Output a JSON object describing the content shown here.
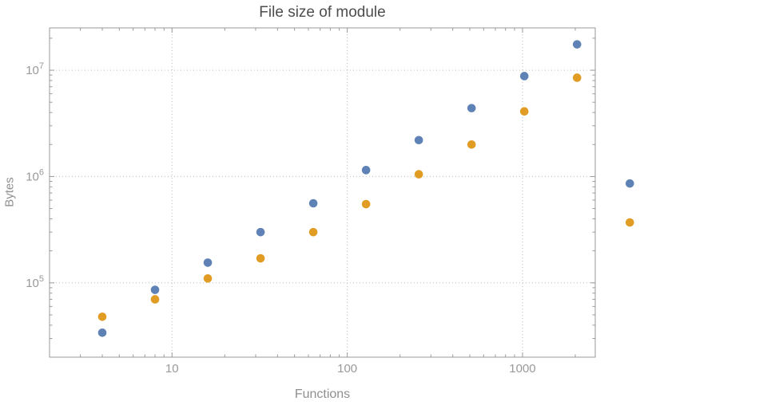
{
  "chart_data": {
    "type": "scatter",
    "title": "File size of module",
    "xlabel": "Functions",
    "ylabel": "Bytes",
    "x_scale": "log",
    "y_scale": "log",
    "xlim": [
      2,
      2600
    ],
    "ylim": [
      20000,
      25000000
    ],
    "grid": {
      "style": "dotted",
      "x_values": [
        10,
        100,
        1000
      ],
      "y_values": [
        100000,
        1000000,
        10000000
      ]
    },
    "legend": "none",
    "x": [
      4,
      8,
      16,
      32,
      64,
      128,
      256,
      512,
      1024,
      2048,
      4096
    ],
    "series": [
      {
        "name": "series-blue",
        "color": "#5e82b5",
        "values": [
          34000,
          86000,
          155000,
          300000,
          560000,
          1150000,
          2200000,
          4400000,
          8800000,
          17500000,
          860000
        ]
      },
      {
        "name": "series-orange",
        "color": "#e19c24",
        "values": [
          48000,
          70000,
          110000,
          170000,
          300000,
          550000,
          1050000,
          2000000,
          4100000,
          8500000,
          370000
        ]
      }
    ],
    "x_ticks": [
      {
        "label": "10",
        "value": 10
      },
      {
        "label": "100",
        "value": 100
      },
      {
        "label": "1000",
        "value": 1000
      }
    ],
    "y_ticks": [
      {
        "base": "10",
        "exponent": "5",
        "value": 100000
      },
      {
        "base": "10",
        "exponent": "6",
        "value": 1000000
      },
      {
        "base": "10",
        "exponent": "7",
        "value": 10000000
      }
    ],
    "colors": {
      "frame": "#9a9a9a",
      "grid": "#bbbbbb",
      "tick": "#9a9a9a",
      "tick_label": "#999999",
      "title": "#4d4d4d",
      "axis_label": "#8f8f8f"
    }
  }
}
